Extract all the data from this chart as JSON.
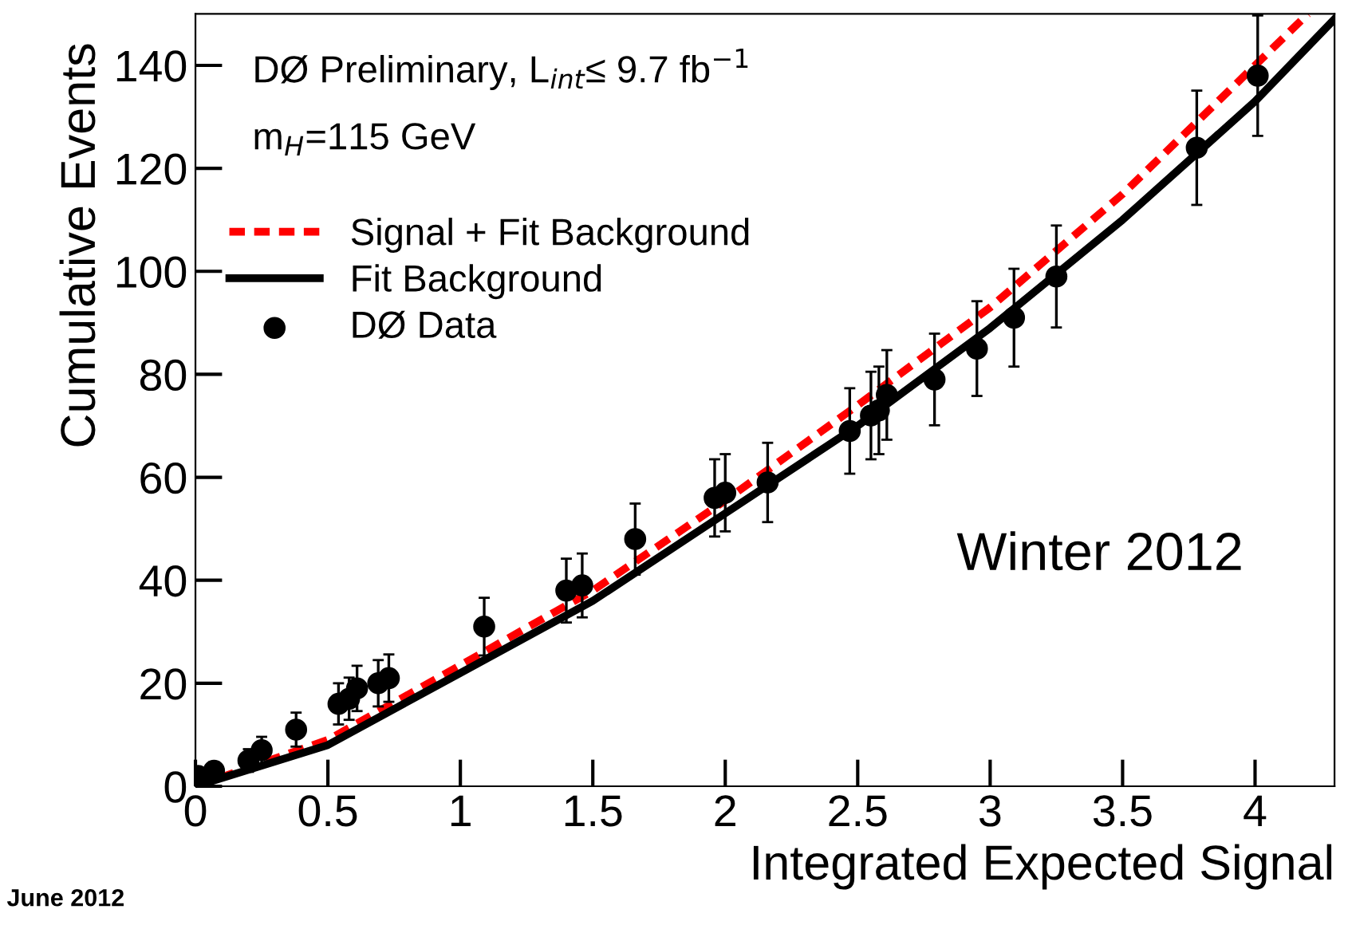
{
  "chart_data": {
    "type": "scatter",
    "xlabel": "Integrated Expected Signal",
    "ylabel": "Cumulative Events",
    "xlim": [
      0,
      4.3
    ],
    "ylim": [
      0,
      150
    ],
    "xticks": [
      0,
      0.5,
      1,
      1.5,
      2,
      2.5,
      3,
      3.5,
      4
    ],
    "yticks": [
      0,
      20,
      40,
      60,
      80,
      100,
      120,
      140
    ],
    "grid": false,
    "legend": "top left",
    "annotations": [
      "DØ Preliminary, L$_{int}$≤ 9.7 fb$^{−1}$",
      "m$_{H}$=115 GeV",
      "Winter 2012",
      "June 2012"
    ],
    "series": [
      {
        "name": "Signal + Fit Background",
        "type": "line",
        "color": "#ff0000",
        "line_style": "dashed",
        "marker": "none",
        "x": [
          0,
          0.5,
          1,
          1.5,
          2,
          2.5,
          3,
          3.5,
          4,
          4.2
        ],
        "values": [
          0,
          9,
          23.5,
          38,
          55.5,
          74,
          93,
          115,
          140,
          150
        ]
      },
      {
        "name": "Fit Background",
        "type": "line",
        "color": "#000000",
        "line_style": "solid",
        "marker": "none",
        "x": [
          0,
          0.5,
          1,
          1.5,
          2,
          2.5,
          3,
          3.5,
          4,
          4.3
        ],
        "values": [
          0,
          8,
          22,
          36,
          53,
          70,
          89,
          110,
          133,
          149
        ]
      },
      {
        "name": "DØ Data",
        "type": "scatter",
        "color": "#000000",
        "marker": "circle",
        "x": [
          0.01,
          0.07,
          0.2,
          0.25,
          0.38,
          0.54,
          0.58,
          0.61,
          0.69,
          0.73,
          1.09,
          1.4,
          1.46,
          1.66,
          1.96,
          2.0,
          2.16,
          2.47,
          2.55,
          2.58,
          2.61,
          2.79,
          2.95,
          3.09,
          3.25,
          3.78,
          4.01
        ],
        "values": [
          2,
          3,
          5,
          7,
          11,
          16,
          17,
          19,
          20,
          21,
          31,
          38,
          39,
          48,
          56,
          57,
          59,
          69,
          72,
          73,
          76,
          79,
          85,
          91,
          99,
          124,
          138
        ],
        "errors": [
          1.4,
          1.7,
          2.2,
          2.6,
          3.3,
          4,
          4.1,
          4.4,
          4.5,
          4.6,
          5.6,
          6.2,
          6.2,
          6.9,
          7.5,
          7.5,
          7.7,
          8.3,
          8.5,
          8.5,
          8.7,
          8.9,
          9.2,
          9.5,
          9.9,
          11.1,
          11.7
        ]
      }
    ]
  }
}
